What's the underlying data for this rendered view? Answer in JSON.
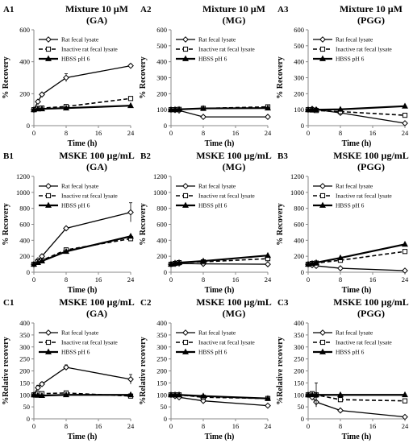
{
  "chart_data": [
    {
      "panel": "A1",
      "type": "line",
      "title": [
        "Mixture  10 µM",
        "(GA)"
      ],
      "xlabel": "Time (h)",
      "ylabel": "% Recovery",
      "xlim": [
        0,
        24
      ],
      "ylim": [
        0,
        600
      ],
      "xticks": [
        0,
        8,
        16,
        24
      ],
      "yticks": [
        0,
        200,
        400,
        600
      ],
      "legend_placement": "top-left",
      "series": [
        {
          "name": "Rat fecal lysate",
          "style": "rat",
          "x": [
            0,
            1,
            2,
            8,
            24
          ],
          "y": [
            100,
            150,
            195,
            300,
            375
          ],
          "err": [
            0,
            10,
            10,
            25,
            10
          ]
        },
        {
          "name": "Inactive rat fecal lysate",
          "style": "inactive",
          "x": [
            0,
            1,
            2,
            8,
            24
          ],
          "y": [
            100,
            108,
            110,
            120,
            170
          ],
          "err": [
            0,
            5,
            5,
            8,
            8
          ]
        },
        {
          "name": "HBSS pH 6",
          "style": "hbss",
          "x": [
            0,
            1,
            2,
            8,
            24
          ],
          "y": [
            100,
            104,
            105,
            110,
            125
          ],
          "err": [
            0,
            0,
            0,
            0,
            0
          ]
        }
      ]
    },
    {
      "panel": "A2",
      "type": "line",
      "title": [
        "Mixture  10 µM",
        "(MG)"
      ],
      "xlabel": "Time (h)",
      "ylabel": "% Recovery",
      "xlim": [
        0,
        24
      ],
      "ylim": [
        0,
        600
      ],
      "xticks": [
        0,
        8,
        16,
        24
      ],
      "yticks": [
        0,
        100,
        200,
        300,
        400,
        500,
        600
      ],
      "legend_placement": "top-left",
      "series": [
        {
          "name": "Rat fecal lysate",
          "style": "rat",
          "x": [
            0,
            1,
            2,
            8,
            24
          ],
          "y": [
            100,
            98,
            95,
            55,
            55
          ],
          "err": [
            0,
            0,
            0,
            0,
            0
          ]
        },
        {
          "name": "Inactive rat fecal lysate",
          "style": "inactive",
          "x": [
            0,
            1,
            2,
            8,
            24
          ],
          "y": [
            100,
            100,
            102,
            108,
            118
          ],
          "err": [
            0,
            0,
            0,
            0,
            0
          ]
        },
        {
          "name": "HBSS pH 6",
          "style": "hbss",
          "x": [
            0,
            1,
            2,
            8,
            24
          ],
          "y": [
            100,
            101,
            102,
            108,
            110
          ],
          "err": [
            0,
            0,
            0,
            0,
            0
          ]
        }
      ]
    },
    {
      "panel": "A3",
      "type": "line",
      "title": [
        "Mixture  10 µM",
        "(PGG)"
      ],
      "xlabel": "Time (h)",
      "ylabel": "% Recovery",
      "xlim": [
        0,
        24
      ],
      "ylim": [
        0,
        600
      ],
      "xticks": [
        0,
        8,
        16,
        24
      ],
      "yticks": [
        0,
        100,
        200,
        300,
        400,
        500,
        600
      ],
      "legend_placement": "top-left",
      "series": [
        {
          "name": "Rat fecal lysate",
          "style": "rat",
          "x": [
            0,
            1,
            2,
            8,
            24
          ],
          "y": [
            100,
            105,
            100,
            80,
            15
          ],
          "err": [
            0,
            0,
            0,
            0,
            0
          ]
        },
        {
          "name": "Inactive rat fecal lysate",
          "style": "inactive",
          "x": [
            0,
            1,
            2,
            8,
            24
          ],
          "y": [
            100,
            98,
            95,
            88,
            65
          ],
          "err": [
            0,
            0,
            0,
            0,
            0
          ]
        },
        {
          "name": "HBSS pH 6",
          "style": "hbss",
          "x": [
            0,
            1,
            2,
            8,
            24
          ],
          "y": [
            100,
            100,
            100,
            102,
            122
          ],
          "err": [
            0,
            0,
            0,
            0,
            0
          ]
        }
      ]
    },
    {
      "panel": "B1",
      "type": "line",
      "title": [
        "MSKE 100 µg/mL",
        "(GA)"
      ],
      "xlabel": "Time (h)",
      "ylabel": "% Recovery",
      "xlim": [
        0,
        24
      ],
      "ylim": [
        0,
        1200
      ],
      "xticks": [
        0,
        8,
        16,
        24
      ],
      "yticks": [
        0,
        200,
        400,
        600,
        800,
        1000,
        1200
      ],
      "legend_placement": "top-left",
      "series": [
        {
          "name": "Rat fecal lysate",
          "style": "rat",
          "x": [
            0,
            1,
            2,
            8,
            24
          ],
          "y": [
            100,
            150,
            200,
            550,
            750
          ],
          "err": [
            0,
            15,
            20,
            20,
            120
          ]
        },
        {
          "name": "Inactive rat fecal lysate",
          "style": "inactive",
          "x": [
            0,
            1,
            2,
            8,
            24
          ],
          "y": [
            100,
            130,
            150,
            280,
            420
          ],
          "err": [
            0,
            10,
            10,
            15,
            20
          ]
        },
        {
          "name": "HBSS pH 6",
          "style": "hbss",
          "x": [
            0,
            1,
            2,
            8,
            24
          ],
          "y": [
            100,
            120,
            140,
            260,
            450
          ],
          "err": [
            0,
            0,
            0,
            0,
            0
          ]
        }
      ]
    },
    {
      "panel": "B2",
      "type": "line",
      "title": [
        "MSKE 100  µg/mL",
        "(MG)"
      ],
      "xlabel": "Time (h)",
      "ylabel": "% Recovery",
      "xlim": [
        0,
        24
      ],
      "ylim": [
        0,
        1200
      ],
      "xticks": [
        0,
        8,
        16,
        24
      ],
      "yticks": [
        0,
        200,
        400,
        600,
        800,
        1000,
        1200
      ],
      "legend_placement": "top-left",
      "series": [
        {
          "name": "Rat fecal lysate",
          "style": "rat",
          "x": [
            0,
            1,
            2,
            8,
            24
          ],
          "y": [
            100,
            105,
            110,
            105,
            100
          ],
          "err": [
            0,
            0,
            0,
            0,
            0
          ]
        },
        {
          "name": "Inactive rat fecal lysate",
          "style": "inactive",
          "x": [
            0,
            1,
            2,
            8,
            24
          ],
          "y": [
            100,
            110,
            120,
            130,
            170
          ],
          "err": [
            0,
            0,
            0,
            0,
            0
          ]
        },
        {
          "name": "HBSS pH 6",
          "style": "hbss",
          "x": [
            0,
            1,
            2,
            8,
            24
          ],
          "y": [
            100,
            115,
            120,
            140,
            210
          ],
          "err": [
            0,
            0,
            0,
            0,
            0
          ]
        }
      ]
    },
    {
      "panel": "B3",
      "type": "line",
      "title": [
        "MSKE 100  µg/mL",
        "(PGG)"
      ],
      "xlabel": "Time (h)",
      "ylabel": "% Recovery",
      "xlim": [
        0,
        24
      ],
      "ylim": [
        0,
        1200
      ],
      "xticks": [
        0,
        8,
        16,
        24
      ],
      "yticks": [
        0,
        200,
        400,
        600,
        800,
        1000,
        1200
      ],
      "legend_placement": "top-left",
      "series": [
        {
          "name": "Rat fecal lysate",
          "style": "rat",
          "x": [
            0,
            1,
            2,
            8,
            24
          ],
          "y": [
            100,
            90,
            80,
            50,
            20
          ],
          "err": [
            0,
            0,
            0,
            0,
            0
          ]
        },
        {
          "name": "Inactive rat fecal lysate",
          "style": "inactive",
          "x": [
            0,
            1,
            2,
            8,
            24
          ],
          "y": [
            100,
            110,
            115,
            150,
            260
          ],
          "err": [
            0,
            0,
            0,
            0,
            0
          ]
        },
        {
          "name": "HBSS pH 6",
          "style": "hbss",
          "x": [
            0,
            1,
            2,
            8,
            24
          ],
          "y": [
            100,
            110,
            120,
            180,
            350
          ],
          "err": [
            0,
            0,
            0,
            0,
            0
          ]
        }
      ]
    },
    {
      "panel": "C1",
      "type": "line",
      "title": [
        "MSKE 100 µg/mL",
        "(GA)"
      ],
      "xlabel": "Time (h)",
      "ylabel": "%Relative recovery",
      "xlim": [
        0,
        24
      ],
      "ylim": [
        0,
        400
      ],
      "xticks": [
        0,
        8,
        16,
        24
      ],
      "yticks": [
        0,
        50,
        100,
        150,
        200,
        250,
        300,
        350,
        400
      ],
      "legend_placement": "top-left",
      "series": [
        {
          "name": "Rat fecal lysate",
          "style": "rat",
          "x": [
            0,
            1,
            2,
            8,
            24
          ],
          "y": [
            100,
            130,
            145,
            215,
            165
          ],
          "err": [
            0,
            10,
            8,
            10,
            20
          ]
        },
        {
          "name": "Inactive rat fecal lysate",
          "style": "inactive",
          "x": [
            0,
            1,
            2,
            8,
            24
          ],
          "y": [
            100,
            105,
            105,
            108,
            95
          ],
          "err": [
            0,
            5,
            5,
            5,
            5
          ]
        },
        {
          "name": "HBSS pH 6",
          "style": "hbss",
          "x": [
            0,
            1,
            2,
            8,
            24
          ],
          "y": [
            100,
            98,
            97,
            100,
            100
          ],
          "err": [
            0,
            0,
            0,
            0,
            0
          ]
        }
      ]
    },
    {
      "panel": "C2",
      "type": "line",
      "title": [
        "MSKE 100 µg/mL",
        "(MG)"
      ],
      "xlabel": "Time (h)",
      "ylabel": "%Relative recovery",
      "xlim": [
        0,
        24
      ],
      "ylim": [
        0,
        400
      ],
      "xticks": [
        0,
        8,
        16,
        24
      ],
      "yticks": [
        0,
        50,
        100,
        150,
        200,
        250,
        300,
        350,
        400
      ],
      "legend_placement": "top-left",
      "series": [
        {
          "name": "Rat fecal lysate",
          "style": "rat",
          "x": [
            0,
            1,
            2,
            8,
            24
          ],
          "y": [
            100,
            95,
            90,
            75,
            55
          ],
          "err": [
            0,
            0,
            0,
            0,
            0
          ]
        },
        {
          "name": "Inactive rat fecal lysate",
          "style": "inactive",
          "x": [
            0,
            1,
            2,
            8,
            24
          ],
          "y": [
            100,
            100,
            100,
            90,
            85
          ],
          "err": [
            0,
            0,
            0,
            0,
            0
          ]
        },
        {
          "name": "HBSS pH 6",
          "style": "hbss",
          "x": [
            0,
            1,
            2,
            8,
            24
          ],
          "y": [
            100,
            100,
            100,
            95,
            85
          ],
          "err": [
            0,
            0,
            0,
            0,
            0
          ]
        }
      ]
    },
    {
      "panel": "C3",
      "type": "line",
      "title": [
        "MSKE 100 µg/mL",
        "(PGG)"
      ],
      "xlabel": "Time (h)",
      "ylabel": "%Relative recovery",
      "xlim": [
        0,
        24
      ],
      "ylim": [
        0,
        400
      ],
      "xticks": [
        0,
        8,
        16,
        24
      ],
      "yticks": [
        0,
        50,
        100,
        150,
        200,
        250,
        300,
        350,
        400
      ],
      "legend_placement": "top-left",
      "series": [
        {
          "name": "Rat fecal lysate",
          "style": "rat",
          "x": [
            0,
            1,
            2,
            8,
            24
          ],
          "y": [
            100,
            90,
            70,
            35,
            8
          ],
          "err": [
            0,
            0,
            20,
            0,
            0
          ]
        },
        {
          "name": "Inactive rat fecal lysate",
          "style": "inactive",
          "x": [
            0,
            1,
            2,
            8,
            24
          ],
          "y": [
            100,
            105,
            100,
            80,
            75
          ],
          "err": [
            0,
            0,
            50,
            10,
            0
          ]
        },
        {
          "name": "HBSS pH 6",
          "style": "hbss",
          "x": [
            0,
            1,
            2,
            8,
            24
          ],
          "y": [
            100,
            100,
            100,
            100,
            100
          ],
          "err": [
            0,
            0,
            0,
            0,
            0
          ]
        }
      ]
    }
  ],
  "colors": {
    "rat": "#000000",
    "inactive": "#000000",
    "hbss": "#000000",
    "axis": "#888888"
  }
}
